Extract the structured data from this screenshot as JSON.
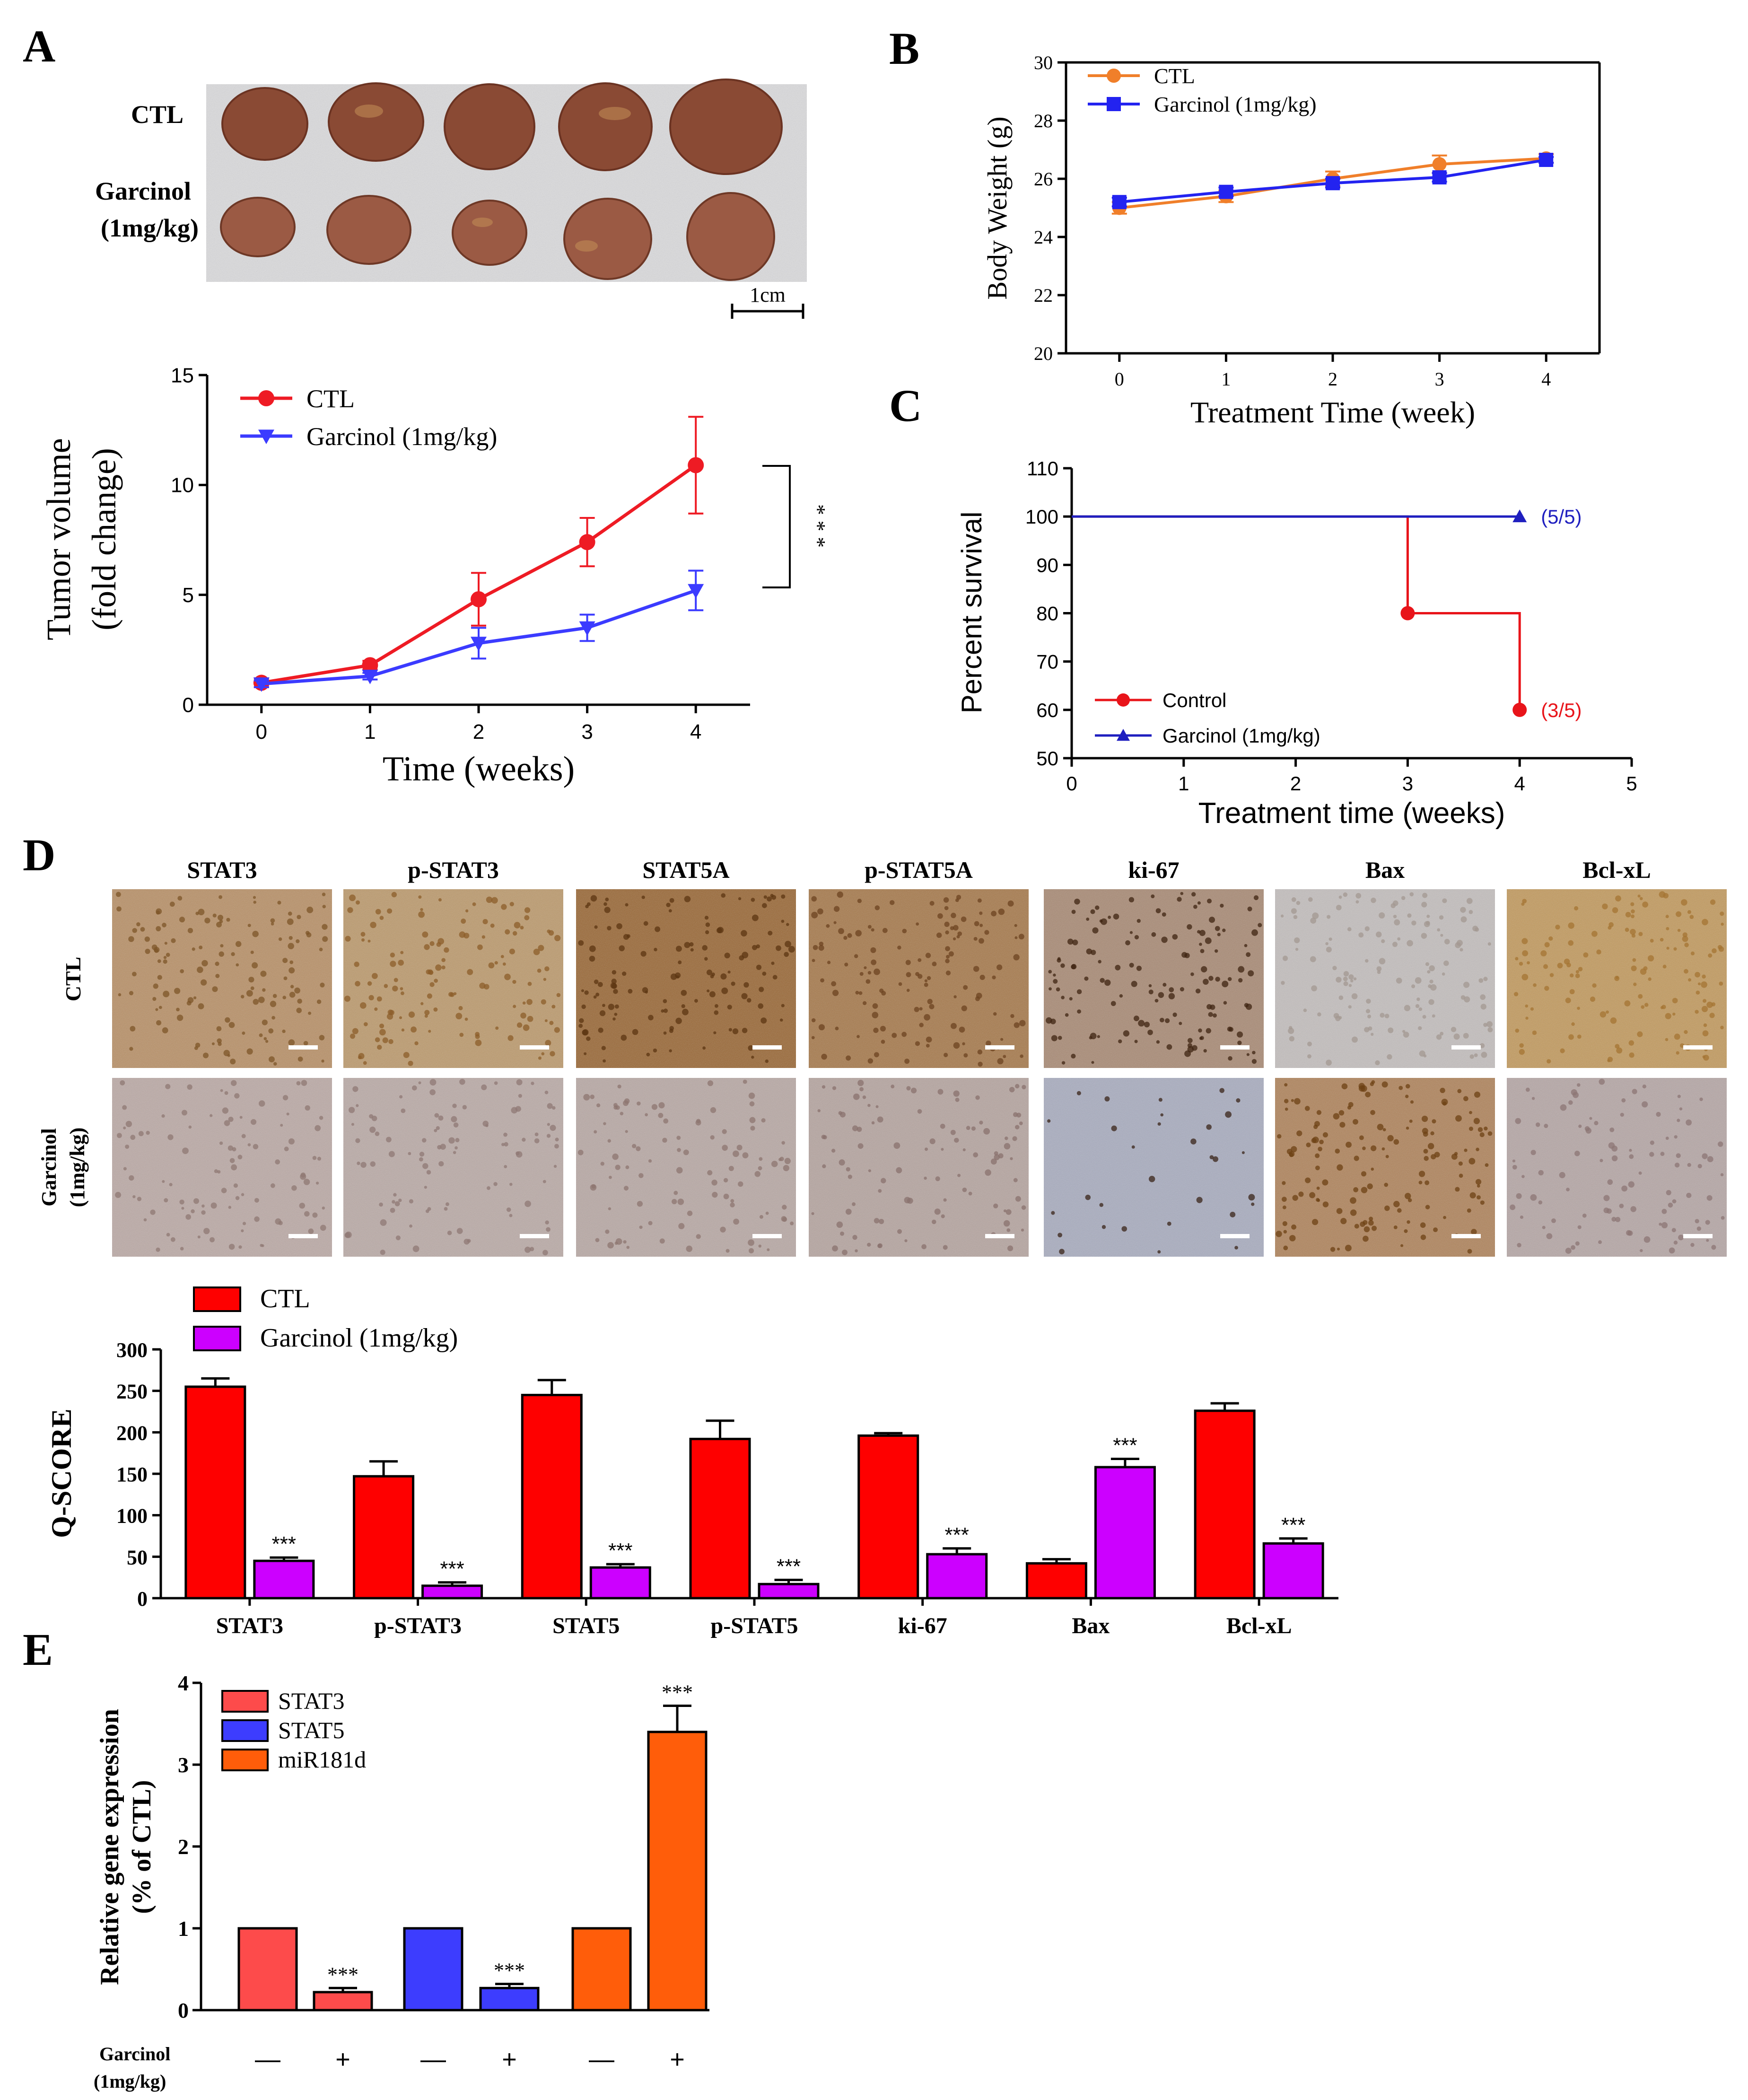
{
  "panels": {
    "A": "A",
    "B": "B",
    "C": "C",
    "D": "D",
    "E": "E"
  },
  "photo": {
    "row_labels": [
      "CTL",
      "Garcinol",
      "(1mg/kg)"
    ],
    "scale_bar": "1cm"
  },
  "ihc": {
    "stains": [
      "STAT3",
      "p-STAT3",
      "STAT5A",
      "p-STAT5A",
      "ki-67",
      "Bax",
      "Bcl-xL"
    ],
    "row_ctl": "CTL",
    "row_garcinol": [
      "Garcinol",
      "(1mg/kg)"
    ],
    "tile_colors_ctl": [
      "#b99066",
      "#bd9a6c",
      "#9a6734",
      "#a7794a",
      "#a98a74",
      "#c4bfbe",
      "#c39a5d"
    ],
    "tile_colors_gar": [
      "#bcaaa6",
      "#bbaba7",
      "#b9a9a5",
      "#b6a5a0",
      "#a9adc0",
      "#b0835a",
      "#b6a7a6"
    ],
    "tile_dots_ctl": [
      "#7d5528",
      "#8c5d2a",
      "#5c3612",
      "#6c4320",
      "#3f2412",
      "#a39891",
      "#a47433"
    ],
    "tile_dots_gar": [
      "#8f7873",
      "#8f7874",
      "#8e7570",
      "#8a716d",
      "#3a2418",
      "#6e4114",
      "#8c7574"
    ]
  },
  "chart_data": [
    {
      "id": "A-tumor-volume",
      "type": "line",
      "x": [
        0,
        1,
        2,
        3,
        4
      ],
      "series": [
        {
          "name": "CTL",
          "values": [
            1.0,
            1.8,
            4.8,
            7.4,
            10.9
          ],
          "errors": [
            0.2,
            0.2,
            1.2,
            1.1,
            2.2
          ],
          "color": "#ee1b24",
          "marker": "circle"
        },
        {
          "name": "Garcinol (1mg/kg)",
          "values": [
            0.95,
            1.3,
            2.8,
            3.5,
            5.2
          ],
          "errors": [
            0.15,
            0.15,
            0.7,
            0.6,
            0.9
          ],
          "color": "#3b3bff",
          "marker": "triangle-down"
        }
      ],
      "xlabel": "Time (weeks)",
      "ylabel": [
        "Tumor volume",
        "(fold change)"
      ],
      "xticks": [
        0,
        1,
        2,
        3,
        4
      ],
      "yticks": [
        0,
        5,
        10,
        15
      ],
      "xlim": [
        -0.5,
        4.5
      ],
      "ylim": [
        0,
        15
      ],
      "significance": "* * *"
    },
    {
      "id": "B-body-weight",
      "type": "line",
      "x": [
        0,
        1,
        2,
        3,
        4
      ],
      "series": [
        {
          "name": "CTL",
          "values": [
            25.0,
            25.4,
            26.0,
            26.5,
            26.7
          ],
          "errors": [
            0.2,
            0.2,
            0.25,
            0.3,
            0.15
          ],
          "color": "#f07f2a",
          "marker": "circle"
        },
        {
          "name": "Garcinol (1mg/kg)",
          "values": [
            25.2,
            25.55,
            25.85,
            26.05,
            26.65
          ],
          "errors": [
            0.15,
            0.15,
            0.15,
            0.15,
            0.1
          ],
          "color": "#2323f0",
          "marker": "square"
        }
      ],
      "xlabel": "Treatment Time (week)",
      "ylabel": "Body Weight (g)",
      "xticks": [
        0,
        1,
        2,
        3,
        4
      ],
      "yticks": [
        20,
        22,
        24,
        26,
        28,
        30
      ],
      "xlim": [
        -0.5,
        4.5
      ],
      "ylim": [
        20,
        30
      ]
    },
    {
      "id": "C-survival",
      "type": "line",
      "step": true,
      "series": [
        {
          "name": "Control",
          "x": [
            0,
            3,
            3,
            4,
            4
          ],
          "values": [
            100,
            100,
            80,
            80,
            60
          ],
          "markers": [
            [
              3,
              80
            ],
            [
              4,
              60
            ]
          ],
          "color": "#e8141a",
          "marker": "circle",
          "end_label": "(3/5)"
        },
        {
          "name": "Garcinol (1mg/kg)",
          "x": [
            0,
            4
          ],
          "values": [
            100,
            100
          ],
          "markers": [
            [
              4,
              100
            ]
          ],
          "color": "#1f1fbf",
          "marker": "triangle",
          "end_label": "(5/5)"
        }
      ],
      "xlabel": "Treatment time (weeks)",
      "ylabel": "Percent survival",
      "xticks": [
        0,
        1,
        2,
        3,
        4,
        5
      ],
      "yticks": [
        50,
        60,
        70,
        80,
        90,
        100,
        110
      ],
      "xlim": [
        0,
        5
      ],
      "ylim": [
        50,
        110
      ]
    },
    {
      "id": "D-qscore",
      "type": "bar",
      "categories": [
        "STAT3",
        "p-STAT3",
        "STAT5",
        "p-STAT5",
        "ki-67",
        "Bax",
        "Bcl-xL"
      ],
      "series": [
        {
          "name": "CTL",
          "values": [
            255,
            147,
            245,
            192,
            196,
            42,
            226
          ],
          "errors": [
            10,
            18,
            18,
            22,
            3,
            5,
            9
          ],
          "color": "#fe0000"
        },
        {
          "name": "Garcinol (1mg/kg)",
          "values": [
            45,
            15,
            37,
            17,
            53,
            158,
            66
          ],
          "errors": [
            4,
            4,
            4,
            5,
            7,
            10,
            6
          ],
          "color": "#cc00ff"
        }
      ],
      "annotations": [
        "***",
        "***",
        "***",
        "***",
        "***",
        "***",
        "***"
      ],
      "ylabel": "Q-SCORE",
      "yticks": [
        0,
        50,
        100,
        150,
        200,
        250,
        300
      ],
      "ylim": [
        0,
        300
      ]
    },
    {
      "id": "E-gene-expression",
      "type": "bar",
      "categories": [
        "—",
        "+",
        "—",
        "+",
        "—",
        "+"
      ],
      "x_row_label": [
        "Garcinol",
        "(1mg/kg)"
      ],
      "values": [
        1.0,
        0.22,
        1.0,
        0.27,
        1.0,
        3.4
      ],
      "errors": [
        0,
        0.05,
        0,
        0.05,
        0,
        0.32
      ],
      "colors": [
        "#fd4b4b",
        "#fd4b4b",
        "#3d3dfe",
        "#3d3dfe",
        "#ff5d0a",
        "#ff5d0a"
      ],
      "legend": [
        {
          "name": "STAT3",
          "color": "#fd4b4b"
        },
        {
          "name": "STAT5",
          "color": "#3d3dfe"
        },
        {
          "name": "miR181d",
          "color": "#ff5d0a"
        }
      ],
      "annotations": [
        "",
        "***",
        "",
        "***",
        "",
        "***"
      ],
      "ylabel": [
        "Relative gene expression",
        "(% of CTL)"
      ],
      "yticks": [
        0,
        1,
        2,
        3,
        4
      ],
      "ylim": [
        0,
        4
      ]
    }
  ]
}
